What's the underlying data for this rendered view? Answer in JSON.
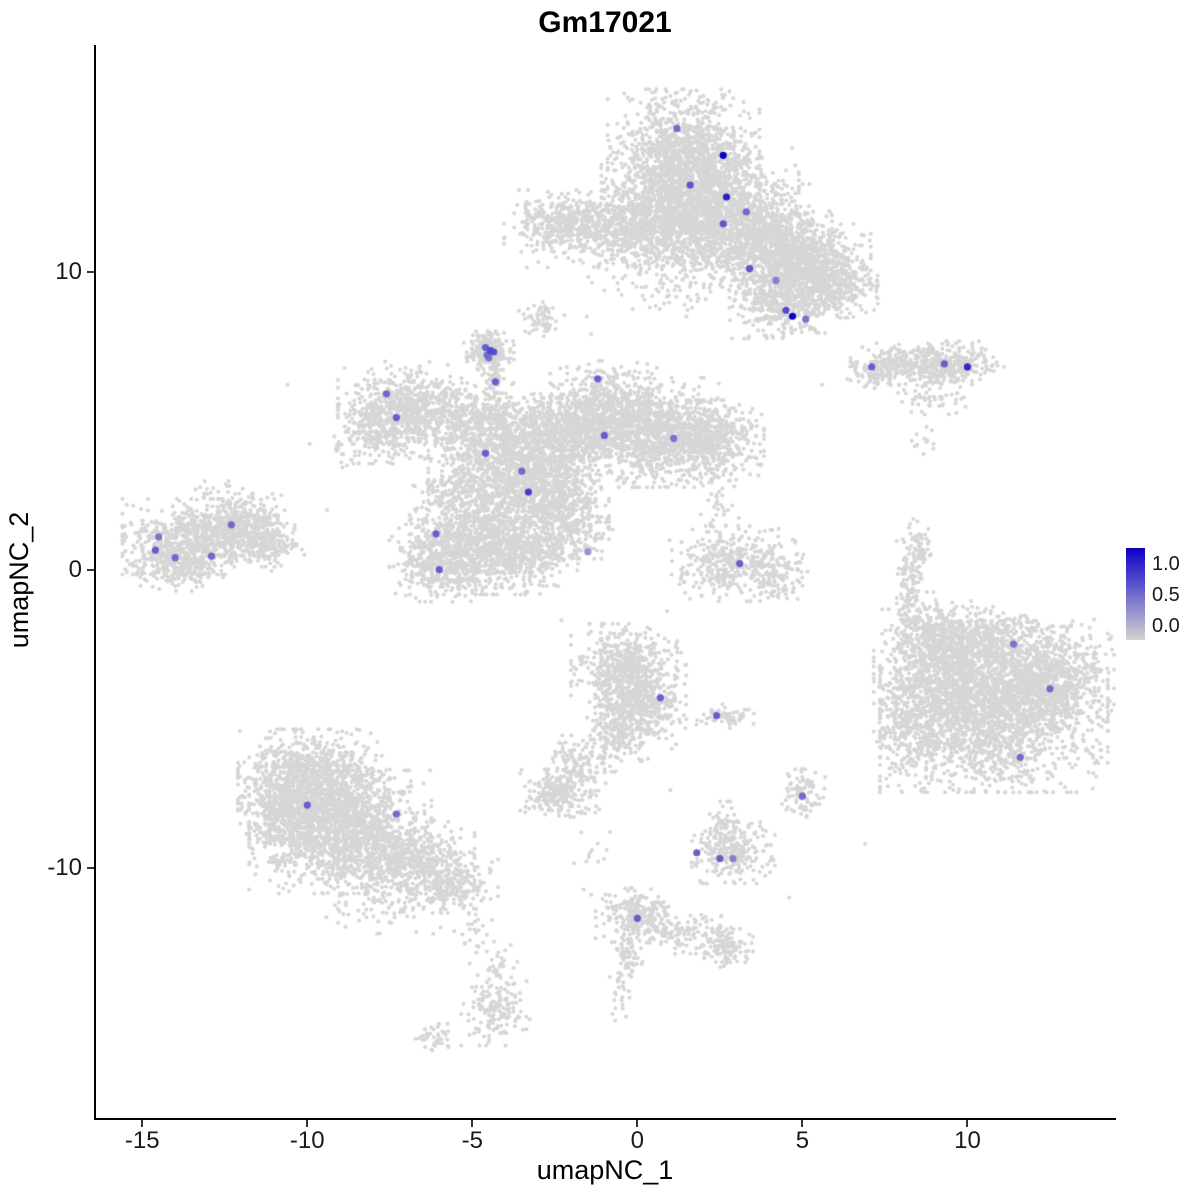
{
  "title": "Gm17021",
  "axes": {
    "x": {
      "label": "umapNC_1",
      "ticks": [
        -15,
        -10,
        -5,
        0,
        5,
        10
      ]
    },
    "y": {
      "label": "umapNC_2",
      "ticks": [
        10,
        0,
        -10
      ]
    }
  },
  "legend": {
    "labels": [
      "1.0",
      "0.5",
      "0.0"
    ],
    "low_color": "#D3D3D3",
    "high_color": "#0D00C4"
  },
  "style": {
    "point_color": "#D6D6D6",
    "point_radius": 2.0,
    "expr_radius": 3.6
  },
  "chart_data": {
    "type": "scatter",
    "title": "Gm17021",
    "xlabel": "umapNC_1",
    "ylabel": "umapNC_2",
    "xlim": [
      -16.4,
      14.5
    ],
    "ylim": [
      -18.4,
      17.6
    ],
    "grid": false,
    "legend_position": "right",
    "cluster_format": "cx,cy,sx,sy,n (gaussian blob of non-expressing cells)",
    "clusters": [
      [
        1.4,
        13.7,
        1.0,
        1.05,
        1400
      ],
      [
        1.9,
        12.3,
        1.3,
        0.8,
        1100
      ],
      [
        0.1,
        11.4,
        1.5,
        0.55,
        800
      ],
      [
        -2.2,
        11.7,
        0.8,
        0.45,
        350
      ],
      [
        3.6,
        11.1,
        1.0,
        0.8,
        900
      ],
      [
        5.0,
        10.3,
        0.9,
        0.7,
        800
      ],
      [
        4.4,
        8.9,
        0.7,
        0.5,
        400
      ],
      [
        5.9,
        9.6,
        0.6,
        0.5,
        300
      ],
      [
        1.0,
        10.1,
        1.1,
        0.7,
        220
      ],
      [
        -2.9,
        8.4,
        0.3,
        0.25,
        60
      ],
      [
        -4.5,
        7.35,
        0.33,
        0.28,
        200
      ],
      [
        -4.35,
        6.4,
        0.15,
        0.45,
        70
      ],
      [
        -7.0,
        5.6,
        0.9,
        0.6,
        500
      ],
      [
        -7.7,
        4.7,
        0.55,
        0.5,
        280
      ],
      [
        -5.2,
        5.0,
        0.9,
        0.55,
        400
      ],
      [
        -3.8,
        3.7,
        1.1,
        0.9,
        1200
      ],
      [
        -2.0,
        4.6,
        0.9,
        0.7,
        700
      ],
      [
        -0.8,
        5.4,
        0.8,
        0.7,
        600
      ],
      [
        0.6,
        4.6,
        0.9,
        0.8,
        800
      ],
      [
        2.0,
        4.3,
        0.8,
        0.6,
        600
      ],
      [
        -2.7,
        2.4,
        0.8,
        0.6,
        500
      ],
      [
        -4.6,
        1.0,
        1.0,
        0.8,
        900
      ],
      [
        -5.9,
        0.3,
        0.7,
        0.6,
        450
      ],
      [
        -3.3,
        0.6,
        0.7,
        0.5,
        300
      ],
      [
        -1.9,
        1.4,
        0.5,
        0.45,
        160
      ],
      [
        -5.3,
        2.5,
        0.7,
        0.5,
        180
      ],
      [
        -13.3,
        1.1,
        1.0,
        0.55,
        650
      ],
      [
        -12.0,
        1.5,
        0.7,
        0.45,
        280
      ],
      [
        -11.2,
        0.9,
        0.5,
        0.35,
        180
      ],
      [
        -13.9,
        0.2,
        0.7,
        0.4,
        280
      ],
      [
        -12.5,
        2.6,
        0.5,
        0.2,
        25
      ],
      [
        8.3,
        6.9,
        0.8,
        0.3,
        240
      ],
      [
        9.5,
        6.9,
        0.7,
        0.33,
        240
      ],
      [
        7.2,
        6.6,
        0.4,
        0.25,
        90
      ],
      [
        8.9,
        5.9,
        0.5,
        0.3,
        60
      ],
      [
        8.7,
        4.5,
        0.2,
        0.4,
        14
      ],
      [
        10.8,
        -4.6,
        1.5,
        1.25,
        2400
      ],
      [
        9.0,
        -3.4,
        0.8,
        0.9,
        550
      ],
      [
        12.6,
        -3.5,
        0.8,
        0.8,
        550
      ],
      [
        10.2,
        -2.4,
        1.0,
        0.5,
        450
      ],
      [
        8.4,
        -5.6,
        0.5,
        0.8,
        250
      ],
      [
        8.9,
        -1.9,
        0.6,
        0.5,
        120
      ],
      [
        8.25,
        -0.6,
        0.17,
        1.0,
        140
      ],
      [
        8.6,
        0.7,
        0.14,
        0.4,
        50
      ],
      [
        2.9,
        0.2,
        0.85,
        0.55,
        400
      ],
      [
        4.3,
        -0.2,
        0.4,
        0.35,
        90
      ],
      [
        2.5,
        2.2,
        0.25,
        0.7,
        40
      ],
      [
        -0.4,
        -3.2,
        0.7,
        0.6,
        450
      ],
      [
        0.1,
        -4.4,
        0.6,
        0.7,
        500
      ],
      [
        -0.6,
        -5.4,
        0.4,
        0.5,
        200
      ],
      [
        -1.7,
        -6.6,
        0.45,
        0.45,
        140
      ],
      [
        -2.4,
        -7.5,
        0.5,
        0.35,
        200
      ],
      [
        2.7,
        -4.9,
        0.45,
        0.18,
        60
      ],
      [
        5.0,
        -7.5,
        0.3,
        0.35,
        90
      ],
      [
        -9.8,
        -7.2,
        1.0,
        0.8,
        1100
      ],
      [
        -9.0,
        -8.8,
        1.2,
        0.9,
        1400
      ],
      [
        -7.0,
        -9.8,
        0.9,
        0.6,
        550
      ],
      [
        -5.6,
        -10.6,
        0.6,
        0.4,
        220
      ],
      [
        -10.9,
        -8.2,
        0.5,
        0.7,
        280
      ],
      [
        -7.8,
        -11.3,
        0.8,
        0.4,
        80
      ],
      [
        -4.9,
        -12.3,
        0.3,
        0.5,
        25
      ],
      [
        0.0,
        -11.6,
        0.55,
        0.4,
        240
      ],
      [
        1.4,
        -12.2,
        0.6,
        0.3,
        110
      ],
      [
        2.7,
        -12.7,
        0.35,
        0.3,
        110
      ],
      [
        -0.3,
        -13.0,
        0.2,
        0.5,
        70
      ],
      [
        -0.5,
        -14.3,
        0.15,
        0.4,
        20
      ],
      [
        -4.3,
        -14.7,
        0.45,
        0.55,
        150
      ],
      [
        -4.1,
        -13.4,
        0.2,
        0.4,
        25
      ],
      [
        -6.2,
        -15.7,
        0.3,
        0.2,
        40
      ],
      [
        2.9,
        -9.5,
        0.55,
        0.45,
        240
      ],
      [
        2.6,
        -8.7,
        0.25,
        0.4,
        60
      ],
      [
        -8.8,
        3.8,
        0.5,
        0.35,
        22
      ],
      [
        -1.5,
        -9.6,
        0.3,
        0.8,
        16
      ]
    ],
    "stray_points": [
      [
        -10.6,
        6.2
      ],
      [
        0.3,
        6.9
      ],
      [
        -1.4,
        7.9
      ],
      [
        -2.3,
        -1.7
      ],
      [
        0.9,
        -1.4
      ],
      [
        1.0,
        -7.4
      ],
      [
        4.6,
        -11.0
      ],
      [
        6.9,
        -9.2
      ],
      [
        5.6,
        6.2
      ],
      [
        -9.4,
        2.0
      ]
    ],
    "cells_format": "x,y,expression_value (0=grey .. 1=blue)",
    "expressing_cells": [
      [
        1.2,
        14.8,
        0.5
      ],
      [
        2.6,
        13.9,
        1.0
      ],
      [
        1.6,
        12.9,
        0.6
      ],
      [
        2.7,
        12.5,
        0.85
      ],
      [
        3.3,
        12.0,
        0.5
      ],
      [
        2.6,
        11.6,
        0.6
      ],
      [
        3.4,
        10.1,
        0.6
      ],
      [
        4.2,
        9.7,
        0.4
      ],
      [
        4.5,
        8.7,
        0.65
      ],
      [
        4.7,
        8.5,
        1.0
      ],
      [
        5.1,
        8.4,
        0.45
      ],
      [
        7.1,
        6.8,
        0.55
      ],
      [
        9.3,
        6.9,
        0.55
      ],
      [
        10.0,
        6.8,
        0.8
      ],
      [
        -4.6,
        7.45,
        0.55
      ],
      [
        -4.45,
        7.35,
        0.65
      ],
      [
        -4.55,
        7.2,
        0.5
      ],
      [
        -4.35,
        7.3,
        0.6
      ],
      [
        -4.5,
        7.1,
        0.45
      ],
      [
        -4.3,
        6.3,
        0.55
      ],
      [
        -7.6,
        5.9,
        0.5
      ],
      [
        -7.3,
        5.1,
        0.55
      ],
      [
        -1.2,
        6.4,
        0.55
      ],
      [
        -1.0,
        4.5,
        0.55
      ],
      [
        1.1,
        4.4,
        0.45
      ],
      [
        -4.6,
        3.9,
        0.55
      ],
      [
        -3.5,
        3.3,
        0.5
      ],
      [
        -3.3,
        2.6,
        0.7
      ],
      [
        -6.1,
        1.2,
        0.55
      ],
      [
        -6.0,
        0.0,
        0.55
      ],
      [
        -1.5,
        0.6,
        0.3
      ],
      [
        -12.3,
        1.5,
        0.5
      ],
      [
        -14.5,
        1.1,
        0.45
      ],
      [
        -14.6,
        0.65,
        0.55
      ],
      [
        -14.0,
        0.4,
        0.5
      ],
      [
        -12.9,
        0.45,
        0.5
      ],
      [
        3.1,
        0.2,
        0.55
      ],
      [
        11.4,
        -2.5,
        0.45
      ],
      [
        12.5,
        -4.0,
        0.5
      ],
      [
        11.6,
        -6.3,
        0.5
      ],
      [
        0.7,
        -4.3,
        0.55
      ],
      [
        2.4,
        -4.9,
        0.55
      ],
      [
        5.0,
        -7.6,
        0.5
      ],
      [
        -10.0,
        -7.9,
        0.55
      ],
      [
        -7.3,
        -8.2,
        0.5
      ],
      [
        1.8,
        -9.5,
        0.55
      ],
      [
        2.5,
        -9.7,
        0.55
      ],
      [
        2.9,
        -9.7,
        0.4
      ],
      [
        0.0,
        -11.7,
        0.55
      ]
    ]
  }
}
